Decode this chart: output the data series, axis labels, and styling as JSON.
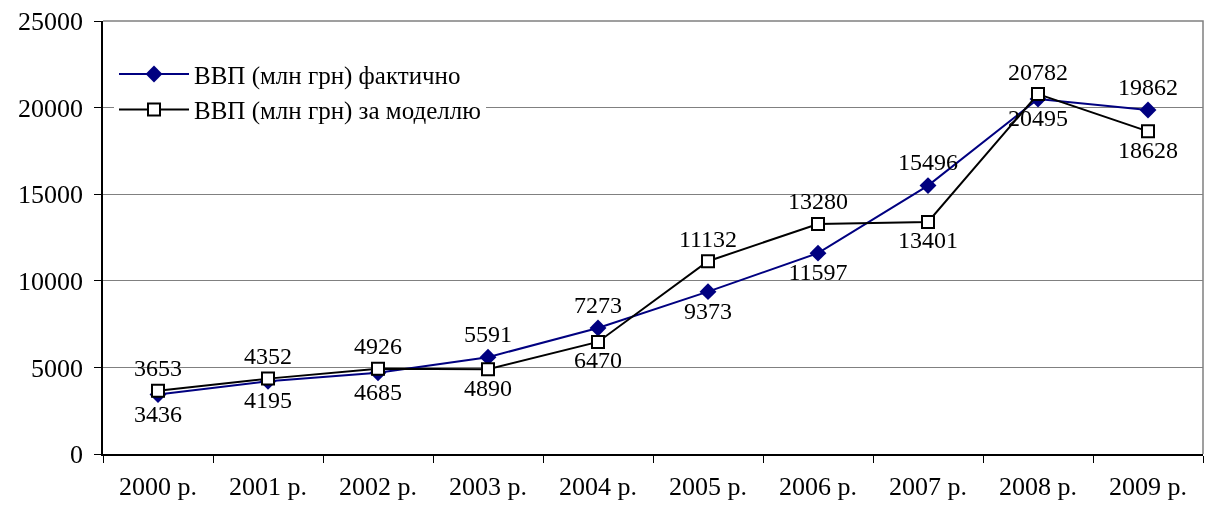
{
  "chart_data": {
    "type": "line",
    "categories": [
      "2000 р.",
      "2001 р.",
      "2002 р.",
      "2003 р.",
      "2004 р.",
      "2005 р.",
      "2006 р.",
      "2007 р.",
      "2008 р.",
      "2009 р."
    ],
    "series": [
      {
        "name": "ВВП (млн грн) фактично",
        "color": "#000080",
        "marker": "diamond",
        "line_style": "solid",
        "values": [
          3436,
          4195,
          4685,
          5591,
          7273,
          9373,
          11597,
          15496,
          20495,
          19862
        ]
      },
      {
        "name": "ВВП (млн грн) за моделлю",
        "color": "#000000",
        "marker": "square",
        "line_style": "solid",
        "values": [
          3653,
          4352,
          4926,
          4890,
          6470,
          11132,
          13280,
          13401,
          20782,
          18628
        ]
      }
    ],
    "ylim": [
      0,
      25000
    ],
    "yticks": [
      0,
      5000,
      10000,
      15000,
      20000,
      25000
    ],
    "grid": "y",
    "legend": "top left",
    "data_labels": true
  }
}
